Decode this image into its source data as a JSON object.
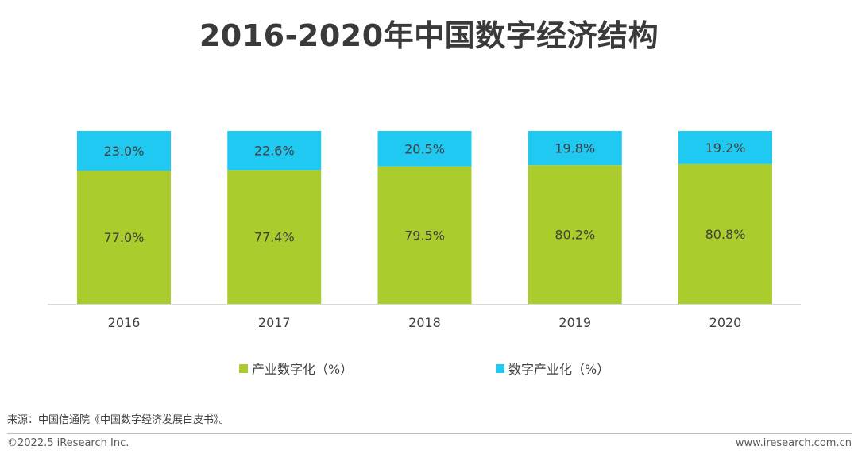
{
  "chart_data": {
    "type": "bar",
    "stacked": true,
    "title": "2016-2020年中国数字经济结构",
    "categories": [
      "2016",
      "2017",
      "2018",
      "2019",
      "2020"
    ],
    "series": [
      {
        "name": "产业数字化（%）",
        "color": "#aacd2d",
        "values": [
          77.0,
          77.4,
          79.5,
          80.2,
          80.8
        ],
        "labels": [
          "77.0%",
          "77.4%",
          "79.5%",
          "80.2%",
          "80.8%"
        ]
      },
      {
        "name": "数字产业化（%）",
        "color": "#1fc9f2",
        "values": [
          23.0,
          22.6,
          20.5,
          19.8,
          19.2
        ],
        "labels": [
          "23.0%",
          "22.6%",
          "20.5%",
          "19.8%",
          "19.2%"
        ]
      }
    ],
    "ylim": [
      0,
      100
    ],
    "xlabel": "",
    "ylabel": "",
    "grid": false,
    "legend": "bottom"
  },
  "footer": {
    "source": "来源：中国信通院《中国数字经济发展白皮书》。",
    "copyright": "©2022.5 iResearch Inc.",
    "website": "www.iresearch.com.cn"
  }
}
